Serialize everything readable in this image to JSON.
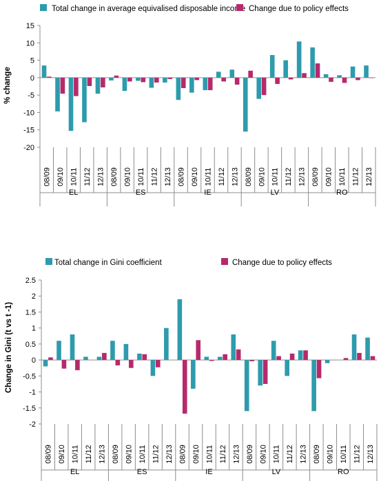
{
  "colors": {
    "total": "#2e9bad",
    "policy": "#b62a6c",
    "axis": "#8c8c8c",
    "text": "#000000"
  },
  "chart_data": [
    {
      "type": "bar",
      "ylabel": "% change",
      "ylim": [
        -20,
        15
      ],
      "yticks": [
        -20,
        -15,
        -10,
        -5,
        0,
        5,
        10,
        15
      ],
      "grid": false,
      "legend_placement": "top",
      "groups": [
        "EL",
        "ES",
        "IE",
        "LV",
        "RO"
      ],
      "periods": [
        "08/09",
        "09/10",
        "10/11",
        "11/12",
        "12/13"
      ],
      "series": [
        {
          "name": "Total change in average equivalised disposable income",
          "values": [
            3.5,
            -9.7,
            -15.3,
            -12.8,
            -4.6,
            -0.8,
            -3.8,
            -0.9,
            -2.9,
            -1.4,
            -6.4,
            -4.3,
            -3.6,
            1.7,
            2.3,
            -15.5,
            -6.1,
            6.5,
            5.0,
            10.4,
            8.7,
            1.0,
            0.7,
            3.2,
            3.5
          ]
        },
        {
          "name": "Change due to policy effects",
          "values": [
            0.3,
            -4.6,
            -5.3,
            -2.4,
            -2.8,
            0.6,
            -1.1,
            -1.3,
            -1.4,
            -0.4,
            -3.0,
            -0.7,
            -3.6,
            -1.1,
            -2.0,
            2.0,
            -5.0,
            -1.8,
            -0.5,
            1.3,
            4.1,
            -1.2,
            -1.5,
            -0.7,
            -0.1
          ]
        }
      ]
    },
    {
      "type": "bar",
      "ylabel": "Change in Gini (t vs t -1)",
      "ylim": [
        -2,
        2.5
      ],
      "yticks": [
        -2,
        -1.5,
        -1,
        -0.5,
        0,
        0.5,
        1,
        1.5,
        2,
        2.5
      ],
      "grid": false,
      "legend_placement": "top",
      "groups": [
        "EL",
        "ES",
        "IE",
        "LV",
        "RO"
      ],
      "periods": [
        "08/09",
        "09/10",
        "10/11",
        "11/12",
        "12/13"
      ],
      "series": [
        {
          "name": "Total change in Gini coefficient",
          "values": [
            -0.2,
            0.6,
            0.8,
            0.1,
            0.1,
            0.6,
            0.5,
            0.2,
            -0.5,
            1.0,
            1.9,
            -0.9,
            0.1,
            0.1,
            0.8,
            -1.6,
            -0.8,
            0.6,
            -0.5,
            0.3,
            -1.6,
            -0.1,
            0.0,
            0.8,
            0.7
          ]
        },
        {
          "name": "Change due to policy effects",
          "values": [
            0.08,
            -0.27,
            -0.32,
            0.0,
            0.22,
            -0.17,
            -0.25,
            0.18,
            -0.23,
            0.0,
            -1.68,
            0.62,
            -0.03,
            0.18,
            0.33,
            -0.04,
            -0.75,
            0.12,
            0.2,
            0.3,
            -0.57,
            0.0,
            0.06,
            0.22,
            0.12
          ]
        }
      ]
    }
  ]
}
